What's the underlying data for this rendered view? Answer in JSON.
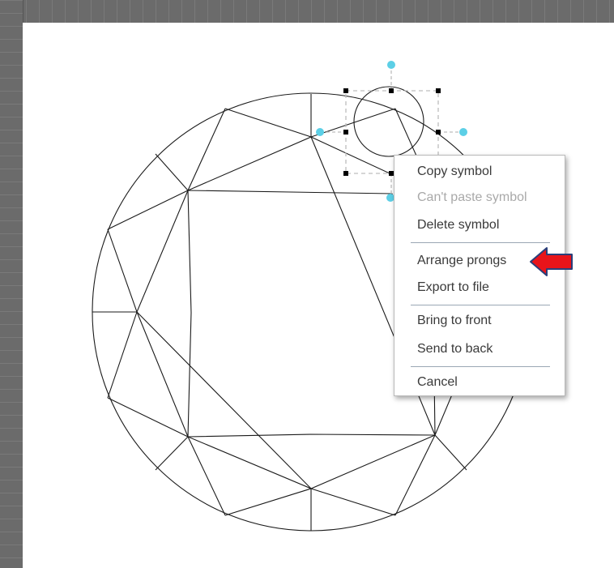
{
  "context_menu": {
    "items": [
      {
        "label": "Copy symbol",
        "enabled": true
      },
      {
        "label": "Can't paste symbol",
        "enabled": false
      },
      {
        "label": "Delete symbol",
        "enabled": true
      },
      {
        "label": "Arrange prongs",
        "enabled": true
      },
      {
        "label": "Export to file",
        "enabled": true
      },
      {
        "label": "Bring to front",
        "enabled": true
      },
      {
        "label": "Send to back",
        "enabled": true
      },
      {
        "label": "Cancel",
        "enabled": true
      }
    ]
  },
  "colors": {
    "handle_blue": "#5ccfe6",
    "highlight_arrow": "#e8141a",
    "arrow_outline": "#2a3f7a",
    "canvas": "#ffffff",
    "workspace": "#6e6e6e"
  },
  "icons": [
    "red-pointer-arrow-icon",
    "rotation-handle-icon",
    "resize-handle-icon"
  ]
}
